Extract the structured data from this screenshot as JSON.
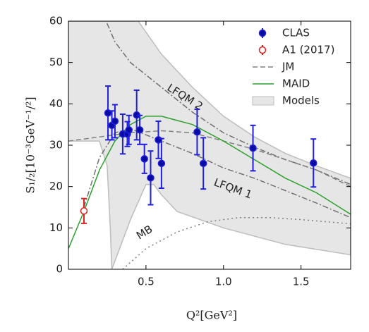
{
  "chart_data": {
    "type": "line",
    "xlabel": "Q²[GeV²]",
    "ylabel": "S₁/₂[10⁻³GeV⁻¹/²]",
    "xlim": [
      0,
      1.82
    ],
    "ylim": [
      0,
      60
    ],
    "xticks": [
      0.5,
      {
        "value": 1,
        "label": "1.0"
      },
      1.5
    ],
    "yticks": [
      0,
      10,
      20,
      30,
      40,
      50,
      60
    ],
    "legend_position": "upper right",
    "series": [
      {
        "name": "Models",
        "kind": "band",
        "color": "#e6e6e6",
        "edge": "#bdbdbd",
        "x": [
          0,
          0,
          0.45,
          0.6,
          0.8,
          1.0,
          1.2,
          1.4,
          1.6,
          1.82,
          1.82,
          1.4,
          1.0,
          0.7,
          0.6,
          0.55,
          0.5,
          0.4,
          0.3,
          0.28,
          0.27,
          0.25,
          0.2
        ],
        "values": [
          31,
          60,
          60,
          52,
          44,
          37,
          32,
          28,
          25,
          22,
          3.5,
          6,
          10,
          14,
          18,
          20.5,
          20.5,
          12,
          2,
          0,
          10,
          25,
          31
        ]
      },
      {
        "name": "MB",
        "kind": "line",
        "dash": "2,4",
        "color": "#808080",
        "legend": false,
        "x": [
          0.35,
          0.5,
          0.7,
          0.9,
          1.1,
          1.3,
          1.5,
          1.82
        ],
        "values": [
          0,
          5,
          9,
          11.5,
          12.5,
          12.5,
          12,
          11
        ]
      },
      {
        "name": "LFQM 2",
        "kind": "line",
        "dash": "8,3,2,3",
        "color": "#707070",
        "legend": false,
        "x": [
          0.22,
          0.3,
          0.4,
          0.6,
          0.8,
          1.0,
          1.2,
          1.4,
          1.6,
          1.82
        ],
        "values": [
          62,
          55,
          50,
          44,
          38,
          33,
          29.5,
          26.5,
          24,
          20.5
        ]
      },
      {
        "name": "LFQM 1",
        "kind": "line",
        "dash": "8,3,2,3",
        "color": "#707070",
        "legend": false,
        "x": [
          0.1,
          0.2,
          0.3,
          0.4,
          0.6,
          0.8,
          1.0,
          1.2,
          1.4,
          1.6,
          1.82
        ],
        "values": [
          15,
          27,
          33,
          34,
          31,
          28,
          24.5,
          22,
          19,
          16,
          12.5
        ]
      },
      {
        "name": "JM",
        "kind": "line",
        "dash": "7,4",
        "color": "#808080",
        "x": [
          0,
          0.2,
          0.4,
          0.6,
          0.8,
          1.0,
          1.2,
          1.4,
          1.6,
          1.82
        ],
        "values": [
          31,
          32,
          33,
          33.5,
          33,
          31,
          29,
          26.5,
          24,
          20
        ]
      },
      {
        "name": "MAID",
        "kind": "line",
        "color": "#2ca02c",
        "x": [
          0,
          0.1,
          0.2,
          0.3,
          0.4,
          0.5,
          0.6,
          0.8,
          1.0,
          1.2,
          1.4,
          1.6,
          1.82
        ],
        "values": [
          5,
          14,
          24,
          31,
          35,
          37,
          37,
          35,
          31,
          26.5,
          22,
          18.5,
          13.3
        ]
      },
      {
        "name": "CLAS",
        "kind": "errorbar",
        "color": "#1f1fdd",
        "marker_fill": "#0a0aa0",
        "x": [
          0.255,
          0.28,
          0.3,
          0.35,
          0.38,
          0.39,
          0.44,
          0.46,
          0.49,
          0.53,
          0.58,
          0.6,
          0.83,
          0.87,
          1.19,
          1.58
        ],
        "values": [
          37.8,
          34.8,
          35.8,
          32.7,
          32.7,
          33.7,
          37.3,
          33.7,
          26.7,
          22.1,
          31.3,
          25.6,
          33.2,
          25.6,
          29.3,
          25.7
        ],
        "errors": [
          6.5,
          3.5,
          4,
          4.8,
          3,
          3.5,
          6,
          3.5,
          3.5,
          6.5,
          4.5,
          6,
          5.5,
          6.2,
          5.5,
          5.8
        ]
      },
      {
        "name": "A1 (2017)",
        "kind": "errorbar",
        "color": "#dd2222",
        "marker_fill": "#ffffff",
        "x": [
          0.1
        ],
        "values": [
          14.1
        ],
        "errors": [
          3
        ]
      }
    ]
  }
}
